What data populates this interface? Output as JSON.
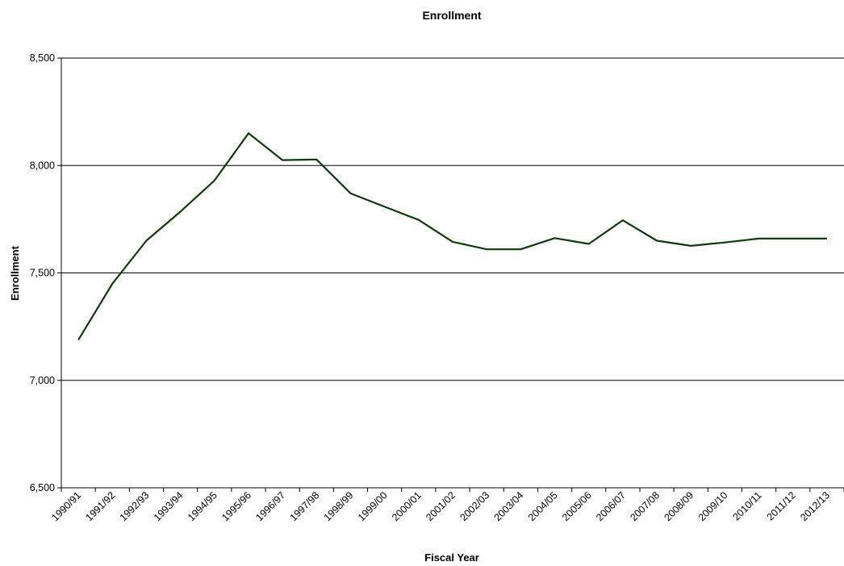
{
  "chart_data": {
    "type": "line",
    "title": "Enrollment",
    "xlabel": "Fiscal Year",
    "ylabel": "Enrollment",
    "ylim": [
      6500,
      8500
    ],
    "yticks": [
      6500,
      7000,
      7500,
      8000,
      8500
    ],
    "ytick_labels": [
      "6,500",
      "7,000",
      "7,500",
      "8,000",
      "8,500"
    ],
    "grid": "horizontal",
    "legend": "none",
    "categories": [
      "1990/91",
      "1991/92",
      "1992/93",
      "1993/94",
      "1994/95",
      "1995/96",
      "1996/97",
      "1997/98",
      "1998/99",
      "1999/00",
      "2000/01",
      "2001/02",
      "2002/03",
      "2003/04",
      "2004/05",
      "2005/06",
      "2006/07",
      "2007/08",
      "2008/09",
      "2009/10",
      "2010/11",
      "2011/12",
      "2012/13"
    ],
    "series": [
      {
        "color": "#0f3b0f",
        "values": [
          7188,
          7450,
          7650,
          7785,
          7930,
          8150,
          8025,
          8028,
          7870,
          7808,
          7747,
          7645,
          7610,
          7610,
          7662,
          7635,
          7745,
          7650,
          7626,
          7642,
          7660,
          7660,
          7660
        ]
      }
    ]
  }
}
